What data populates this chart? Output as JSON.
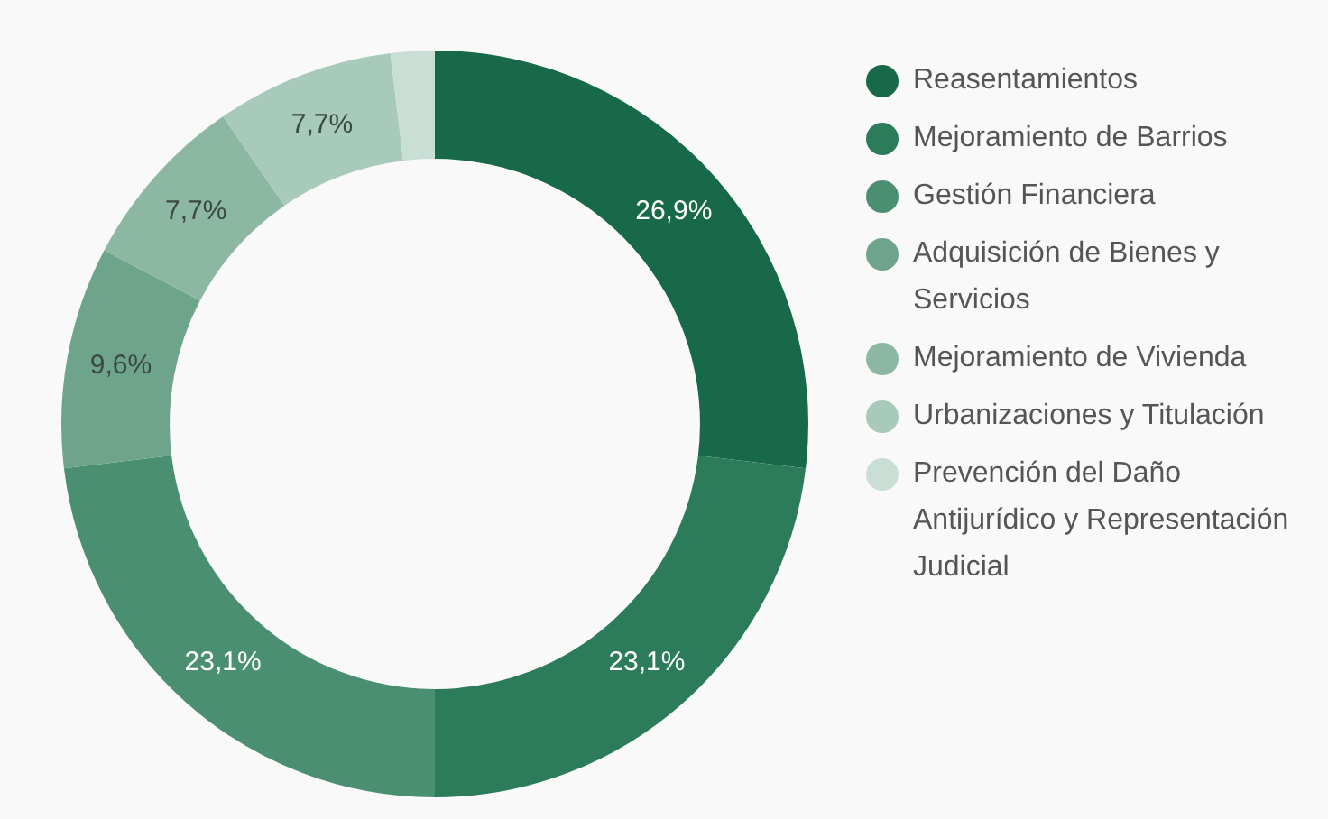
{
  "chart_data": {
    "type": "donut",
    "categories": [
      "Reasentamientos",
      "Mejoramiento de Barrios",
      "Gestión Financiera",
      "Adquisición de Bienes y Servicios",
      "Mejoramiento de Vivienda",
      "Urbanizaciones y Titulación",
      "Prevención del Daño Antijurídico y Representación Judicial"
    ],
    "values": [
      26.9,
      23.1,
      23.1,
      9.6,
      7.7,
      7.7,
      1.9
    ],
    "value_labels": [
      "26,9%",
      "23,1%",
      "23,1%",
      "9,6%",
      "7,7%",
      "7,7%",
      null
    ],
    "colors": [
      "#17694a",
      "#2c7c5c",
      "#4a8f72",
      "#6fa48c",
      "#8cb7a3",
      "#a8cabb",
      "#c9ded4"
    ],
    "legend": "right"
  }
}
